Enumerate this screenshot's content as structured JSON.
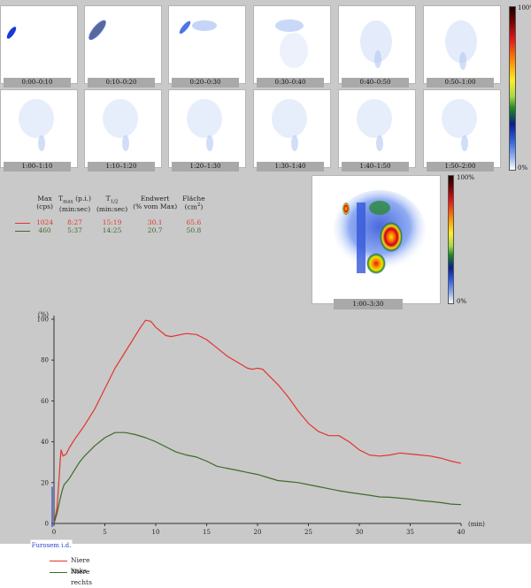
{
  "frames": [
    {
      "label": "0:00–0:10"
    },
    {
      "label": "0:10–0:20"
    },
    {
      "label": "0:20–0:30"
    },
    {
      "label": "0:30–0:40"
    },
    {
      "label": "0:40–0:50"
    },
    {
      "label": "0:50–1:00"
    },
    {
      "label": "1:00–1:10"
    },
    {
      "label": "1:10–1:20"
    },
    {
      "label": "1:20–1:30"
    },
    {
      "label": "1:30–1:40"
    },
    {
      "label": "1:40–1:50"
    },
    {
      "label": "1:50–2:00"
    }
  ],
  "color_scale": {
    "top": "100%",
    "bottom": "0%"
  },
  "summary_image": {
    "label": "1:00–3:30",
    "scale_top": "100%",
    "scale_bottom": "0%"
  },
  "stats_table": {
    "headers": [
      {
        "main": "Max",
        "sub": "(cps)"
      },
      {
        "main": "T",
        "subscript": "max",
        "main_suffix": " (p.i.)",
        "sub": "(min:sec)"
      },
      {
        "main": "T",
        "subscript": "1/2",
        "main_suffix": "",
        "sub": "(min:sec)"
      },
      {
        "main": "Endwert",
        "sub": "(% vom Max)"
      },
      {
        "main": "Fläche",
        "sub": "(cm",
        "superscript": "2",
        "sub_suffix": ")"
      }
    ],
    "rows": [
      {
        "color": "#e3342f",
        "values": [
          "1024",
          "8:27",
          "15:19",
          "30.1",
          "65.6"
        ]
      },
      {
        "color": "#3d6b2c",
        "values": [
          "460",
          "5:37",
          "14:25",
          "20.7",
          "50.8"
        ]
      }
    ]
  },
  "chart_data": {
    "type": "line",
    "xlabel": "(min)",
    "ylabel": "(%)",
    "xlim": [
      0,
      40
    ],
    "ylim": [
      0,
      100
    ],
    "xticks": [
      0,
      5,
      10,
      15,
      20,
      25,
      30,
      35,
      40
    ],
    "yticks": [
      0,
      20,
      40,
      60,
      80,
      100
    ],
    "annotation": "Furosem i.d.",
    "series": [
      {
        "name": "Niere links",
        "color": "#e3342f",
        "points": [
          [
            0,
            0
          ],
          [
            0.3,
            8
          ],
          [
            0.5,
            22
          ],
          [
            0.6,
            30
          ],
          [
            0.7,
            36
          ],
          [
            0.9,
            33
          ],
          [
            1.2,
            34
          ],
          [
            1.5,
            37
          ],
          [
            2,
            41
          ],
          [
            3,
            48
          ],
          [
            4,
            56
          ],
          [
            5,
            66
          ],
          [
            6,
            76
          ],
          [
            7,
            84
          ],
          [
            8,
            92
          ],
          [
            8.5,
            96
          ],
          [
            9,
            99.5
          ],
          [
            9.5,
            99
          ],
          [
            10,
            96
          ],
          [
            10.5,
            94
          ],
          [
            11,
            92
          ],
          [
            11.5,
            91.5
          ],
          [
            12,
            92
          ],
          [
            12.5,
            92.5
          ],
          [
            13,
            93
          ],
          [
            14,
            92.5
          ],
          [
            15,
            90
          ],
          [
            16,
            86
          ],
          [
            17,
            82
          ],
          [
            18,
            79
          ],
          [
            19,
            76
          ],
          [
            19.5,
            75.5
          ],
          [
            20,
            76
          ],
          [
            20.5,
            75.5
          ],
          [
            21,
            73
          ],
          [
            22,
            68
          ],
          [
            23,
            62
          ],
          [
            24,
            55
          ],
          [
            25,
            49
          ],
          [
            26,
            45
          ],
          [
            27,
            43
          ],
          [
            28,
            43
          ],
          [
            29,
            40
          ],
          [
            30,
            36
          ],
          [
            31,
            33.5
          ],
          [
            32,
            33
          ],
          [
            33,
            33.5
          ],
          [
            34,
            34.5
          ],
          [
            35,
            34
          ],
          [
            36,
            33.5
          ],
          [
            37,
            33
          ],
          [
            38,
            32
          ],
          [
            39,
            30.5
          ],
          [
            40,
            29.5
          ]
        ]
      },
      {
        "name": "Niere rechts",
        "color": "#3d6b2c",
        "points": [
          [
            0,
            0
          ],
          [
            0.3,
            5
          ],
          [
            0.6,
            12
          ],
          [
            0.8,
            16
          ],
          [
            1,
            19
          ],
          [
            1.5,
            22
          ],
          [
            2,
            26
          ],
          [
            2.5,
            30
          ],
          [
            3,
            33
          ],
          [
            4,
            38
          ],
          [
            5,
            42
          ],
          [
            6,
            44.5
          ],
          [
            7,
            44.5
          ],
          [
            8,
            43.5
          ],
          [
            9,
            42
          ],
          [
            10,
            40
          ],
          [
            11,
            37.5
          ],
          [
            12,
            35
          ],
          [
            13,
            33.5
          ],
          [
            14,
            32.5
          ],
          [
            15,
            30.5
          ],
          [
            16,
            28
          ],
          [
            17,
            27
          ],
          [
            18,
            26
          ],
          [
            19,
            25
          ],
          [
            20,
            24
          ],
          [
            21,
            22.5
          ],
          [
            22,
            21
          ],
          [
            23,
            20.5
          ],
          [
            24,
            20
          ],
          [
            25,
            19
          ],
          [
            26,
            18
          ],
          [
            27,
            17
          ],
          [
            28,
            16
          ],
          [
            29,
            15.2
          ],
          [
            30,
            14.5
          ],
          [
            31,
            13.8
          ],
          [
            32,
            13
          ],
          [
            33,
            12.8
          ],
          [
            34,
            12.4
          ],
          [
            35,
            11.9
          ],
          [
            36,
            11.2
          ],
          [
            37,
            10.8
          ],
          [
            38,
            10.2
          ],
          [
            39,
            9.5
          ],
          [
            40,
            9.2
          ]
        ]
      }
    ]
  },
  "legend": [
    {
      "label": "Niere links",
      "color": "#e3342f"
    },
    {
      "label": "Niere rechts",
      "color": "#3d6b2c"
    }
  ]
}
